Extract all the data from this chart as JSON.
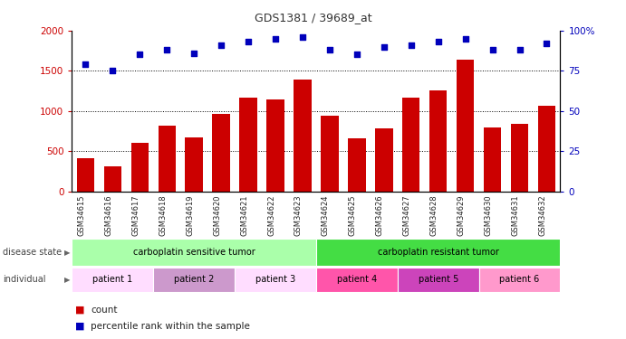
{
  "title": "GDS1381 / 39689_at",
  "samples": [
    "GSM34615",
    "GSM34616",
    "GSM34617",
    "GSM34618",
    "GSM34619",
    "GSM34620",
    "GSM34621",
    "GSM34622",
    "GSM34623",
    "GSM34624",
    "GSM34625",
    "GSM34626",
    "GSM34627",
    "GSM34628",
    "GSM34629",
    "GSM34630",
    "GSM34631",
    "GSM34632"
  ],
  "counts": [
    410,
    310,
    600,
    820,
    670,
    960,
    1170,
    1140,
    1390,
    940,
    660,
    790,
    1170,
    1260,
    1640,
    800,
    840,
    1060
  ],
  "percentiles": [
    79,
    75,
    85,
    88,
    86,
    91,
    93,
    95,
    96,
    88,
    85,
    90,
    91,
    93,
    95,
    88,
    88,
    92
  ],
  "ylim_left": [
    0,
    2000
  ],
  "ylim_right": [
    0,
    100
  ],
  "yticks_left": [
    0,
    500,
    1000,
    1500,
    2000
  ],
  "yticks_right": [
    0,
    25,
    50,
    75,
    100
  ],
  "bar_color": "#cc0000",
  "dot_color": "#0000bb",
  "disease_state_groups": [
    {
      "label": "carboplatin sensitive tumor",
      "start": 0,
      "end": 9,
      "color": "#aaffaa"
    },
    {
      "label": "carboplatin resistant tumor",
      "start": 9,
      "end": 18,
      "color": "#44dd44"
    }
  ],
  "individual_groups": [
    {
      "label": "patient 1",
      "start": 0,
      "end": 3,
      "color": "#ffddff"
    },
    {
      "label": "patient 2",
      "start": 3,
      "end": 6,
      "color": "#cc99cc"
    },
    {
      "label": "patient 3",
      "start": 6,
      "end": 9,
      "color": "#ffddff"
    },
    {
      "label": "patient 4",
      "start": 9,
      "end": 12,
      "color": "#ff55aa"
    },
    {
      "label": "patient 5",
      "start": 12,
      "end": 15,
      "color": "#cc44bb"
    },
    {
      "label": "patient 6",
      "start": 15,
      "end": 18,
      "color": "#ff99cc"
    }
  ],
  "disease_state_label": "disease state",
  "individual_label": "individual",
  "legend_count": "count",
  "legend_percentile": "percentile rank within the sample",
  "xtick_bg_color": "#c8c8c8",
  "title_fontsize": 9
}
